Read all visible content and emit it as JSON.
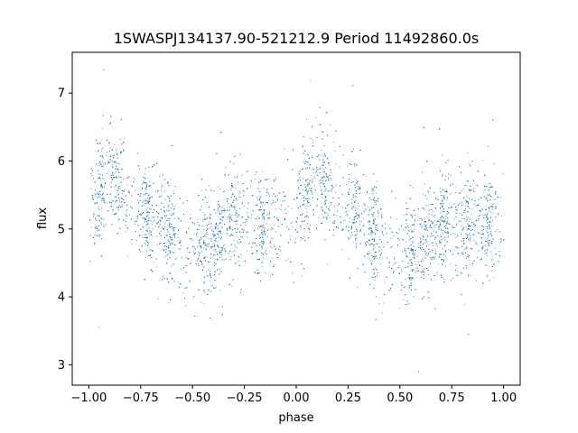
{
  "chart_data": {
    "type": "scatter",
    "title": "1SWASPJ134137.90-521212.9 Period 11492860.0s",
    "xlabel": "phase",
    "ylabel": "flux",
    "xlim": [
      -1.08,
      1.08
    ],
    "ylim": [
      2.7,
      7.6
    ],
    "xticks": [
      -1.0,
      -0.75,
      -0.5,
      -0.25,
      0.0,
      0.25,
      0.5,
      0.75,
      1.0
    ],
    "xtick_labels": [
      "−1.00",
      "−0.75",
      "−0.50",
      "−0.25",
      "0.00",
      "0.25",
      "0.50",
      "0.75",
      "1.00"
    ],
    "yticks": [
      3,
      4,
      5,
      6,
      7
    ],
    "ytick_labels": [
      "3",
      "4",
      "5",
      "6",
      "7"
    ],
    "grid": false,
    "marker_color": "#1f77b4",
    "profile": {
      "phase": [
        0.0,
        0.05,
        0.1,
        0.15,
        0.2,
        0.25,
        0.3,
        0.35,
        0.4,
        0.45,
        0.5,
        0.55,
        0.6,
        0.65,
        0.7,
        0.75,
        0.8,
        0.85,
        0.9,
        0.95,
        1.0
      ],
      "flux": [
        5.2,
        5.5,
        5.85,
        5.7,
        5.45,
        5.35,
        5.2,
        5.0,
        4.9,
        4.7,
        4.75,
        4.7,
        4.85,
        5.0,
        5.1,
        5.0,
        4.95,
        5.05,
        5.1,
        5.15,
        5.2
      ]
    },
    "scatter_width": 0.38,
    "dense_columns": [
      -0.95,
      -0.87,
      -0.72,
      -0.62,
      -0.45,
      -0.38,
      -0.3,
      -0.17,
      0.05,
      0.13,
      0.28,
      0.38,
      0.55,
      0.62,
      0.7,
      0.83,
      0.92
    ],
    "n_points": 9000
  }
}
